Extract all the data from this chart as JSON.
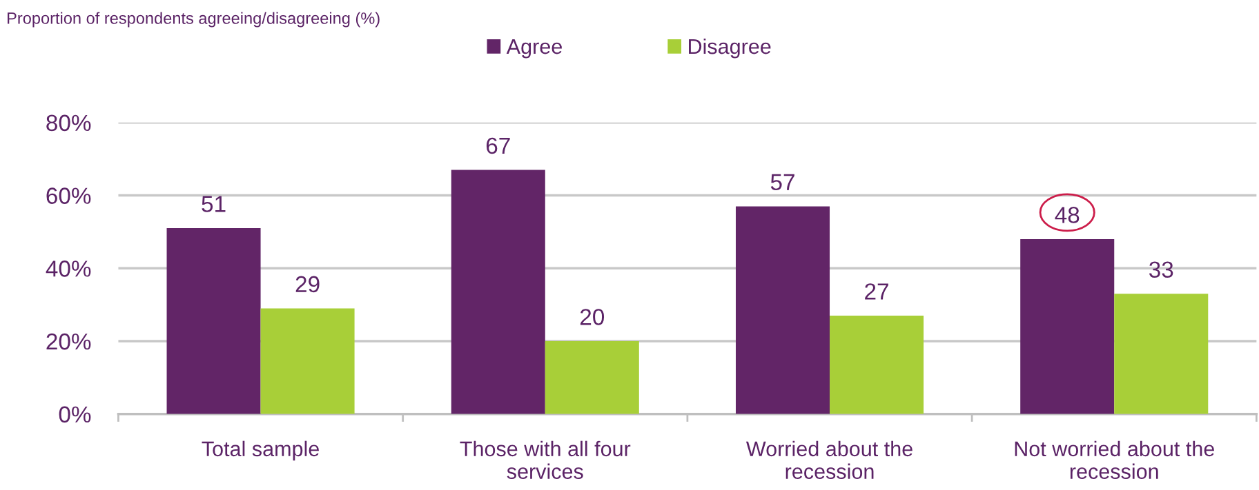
{
  "chart_data": {
    "type": "bar",
    "annotations": [
      "Proportion of respondents agreeing/disagreeing (%)"
    ],
    "categories": [
      "Total sample",
      "Those with all four\nservices",
      "Worried about the\nrecession",
      "Not worried about the\nrecession"
    ],
    "series": [
      {
        "name": "Agree",
        "color": "#622567",
        "values": [
          51,
          67,
          57,
          48
        ]
      },
      {
        "name": "Disagree",
        "color": "#a8cf38",
        "values": [
          29,
          20,
          27,
          33
        ]
      }
    ],
    "ylim": [
      0,
      80
    ],
    "yticks": [
      {
        "value": 0,
        "label": "0%"
      },
      {
        "value": 20,
        "label": "20%"
      },
      {
        "value": 40,
        "label": "40%"
      },
      {
        "value": 60,
        "label": "60%"
      },
      {
        "value": 80,
        "label": "80%"
      }
    ],
    "grid": "y",
    "legend": "top",
    "data_labels": true
  }
}
